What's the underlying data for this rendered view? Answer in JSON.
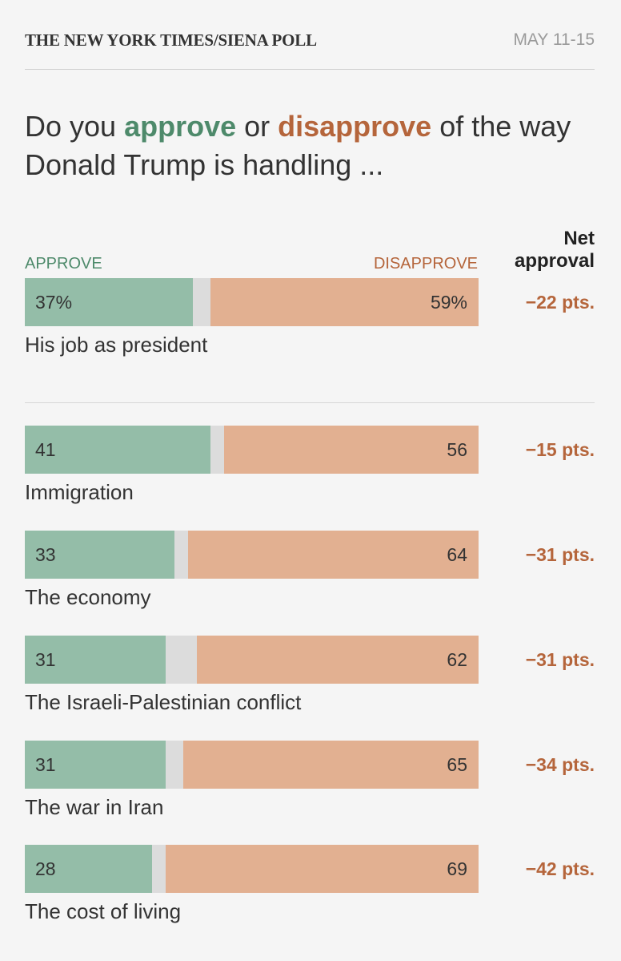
{
  "header": {
    "source": "THE NEW YORK TIMES/SIENA POLL",
    "date": "MAY 11-15"
  },
  "question": {
    "prefix": "Do you ",
    "approve_word": "approve",
    "middle": " or ",
    "disapprove_word": "disapprove",
    "suffix": " of the way Donald Trump is handling ..."
  },
  "legend": {
    "approve": "APPROVE",
    "disapprove": "DISAPPROVE",
    "net_line1": "Net",
    "net_line2": "approval"
  },
  "colors": {
    "approve": "#94bda8",
    "disapprove": "#e2b091",
    "neutral": "#dcdcdc",
    "approve_text": "#4e8a6b",
    "disapprove_text": "#b5653b"
  },
  "chart_data": {
    "type": "bar",
    "stacked": true,
    "unit": "%",
    "categories": [
      "His job as president",
      "Immigration",
      "The economy",
      "The Israeli-Palestinian conflict",
      "The war in Iran",
      "The cost of living"
    ],
    "series": [
      {
        "name": "APPROVE",
        "values": [
          37,
          41,
          33,
          31,
          31,
          28
        ]
      },
      {
        "name": "DISAPPROVE",
        "values": [
          59,
          56,
          64,
          62,
          65,
          69
        ]
      }
    ],
    "rows": [
      {
        "label": "His job as president",
        "approve": 37,
        "disapprove": 59,
        "approve_text": "37%",
        "disapprove_text": "59%",
        "net_text": "−22 pts."
      },
      {
        "label": "Immigration",
        "approve": 41,
        "disapprove": 56,
        "approve_text": "41",
        "disapprove_text": "56",
        "net_text": "−15 pts."
      },
      {
        "label": "The economy",
        "approve": 33,
        "disapprove": 64,
        "approve_text": "33",
        "disapprove_text": "64",
        "net_text": "−31 pts."
      },
      {
        "label": "The Israeli-Palestinian conflict",
        "approve": 31,
        "disapprove": 62,
        "approve_text": "31",
        "disapprove_text": "62",
        "net_text": "−31 pts."
      },
      {
        "label": "The war in Iran",
        "approve": 31,
        "disapprove": 65,
        "approve_text": "31",
        "disapprove_text": "65",
        "net_text": "−34 pts."
      },
      {
        "label": "The cost of living",
        "approve": 28,
        "disapprove": 69,
        "approve_text": "28",
        "disapprove_text": "69",
        "net_text": "−42 pts."
      }
    ]
  }
}
